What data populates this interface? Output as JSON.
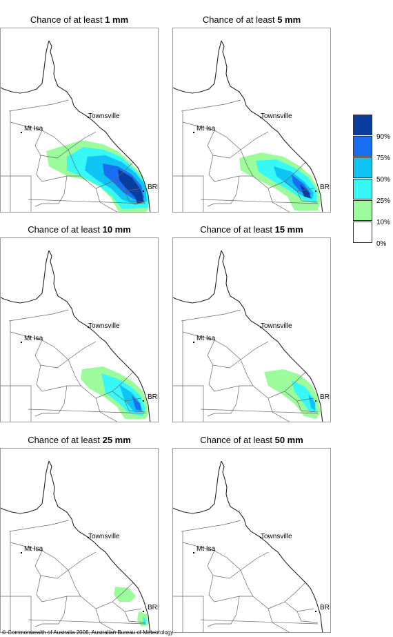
{
  "panels": [
    {
      "title_prefix": "Chance of at least ",
      "amount": "1 mm",
      "palette": [
        0,
        1,
        2,
        3,
        4,
        5
      ],
      "extent": "large"
    },
    {
      "title_prefix": "Chance of at least ",
      "amount": "5 mm",
      "palette": [
        0,
        1,
        2,
        3,
        4,
        5
      ],
      "extent": "medium"
    },
    {
      "title_prefix": "Chance of at least ",
      "amount": "10 mm",
      "palette": [
        0,
        1,
        2,
        3
      ],
      "extent": "medium-small"
    },
    {
      "title_prefix": "Chance of at least ",
      "amount": "15 mm",
      "palette": [
        0,
        1,
        2
      ],
      "extent": "small"
    },
    {
      "title_prefix": "Chance of at least ",
      "amount": "25 mm",
      "palette": [
        0,
        1
      ],
      "extent": "tiny"
    },
    {
      "title_prefix": "Chance of at least ",
      "amount": "50 mm",
      "palette": [],
      "extent": "none"
    }
  ],
  "places": {
    "townsville": "Townsville",
    "mt_isa": "Mt Isa",
    "brisbane": "BRIS"
  },
  "legend": {
    "labels": [
      "90%",
      "75%",
      "50%",
      "25%",
      "10%",
      "0%"
    ],
    "colors": [
      "#0a3d9e",
      "#1a6ef0",
      "#10c3f5",
      "#38f7f7",
      "#9cfc9c",
      "#ffffff"
    ]
  },
  "copyright": "© Commonwealth of Australia 2006, Australian Bureau of Meteorology"
}
